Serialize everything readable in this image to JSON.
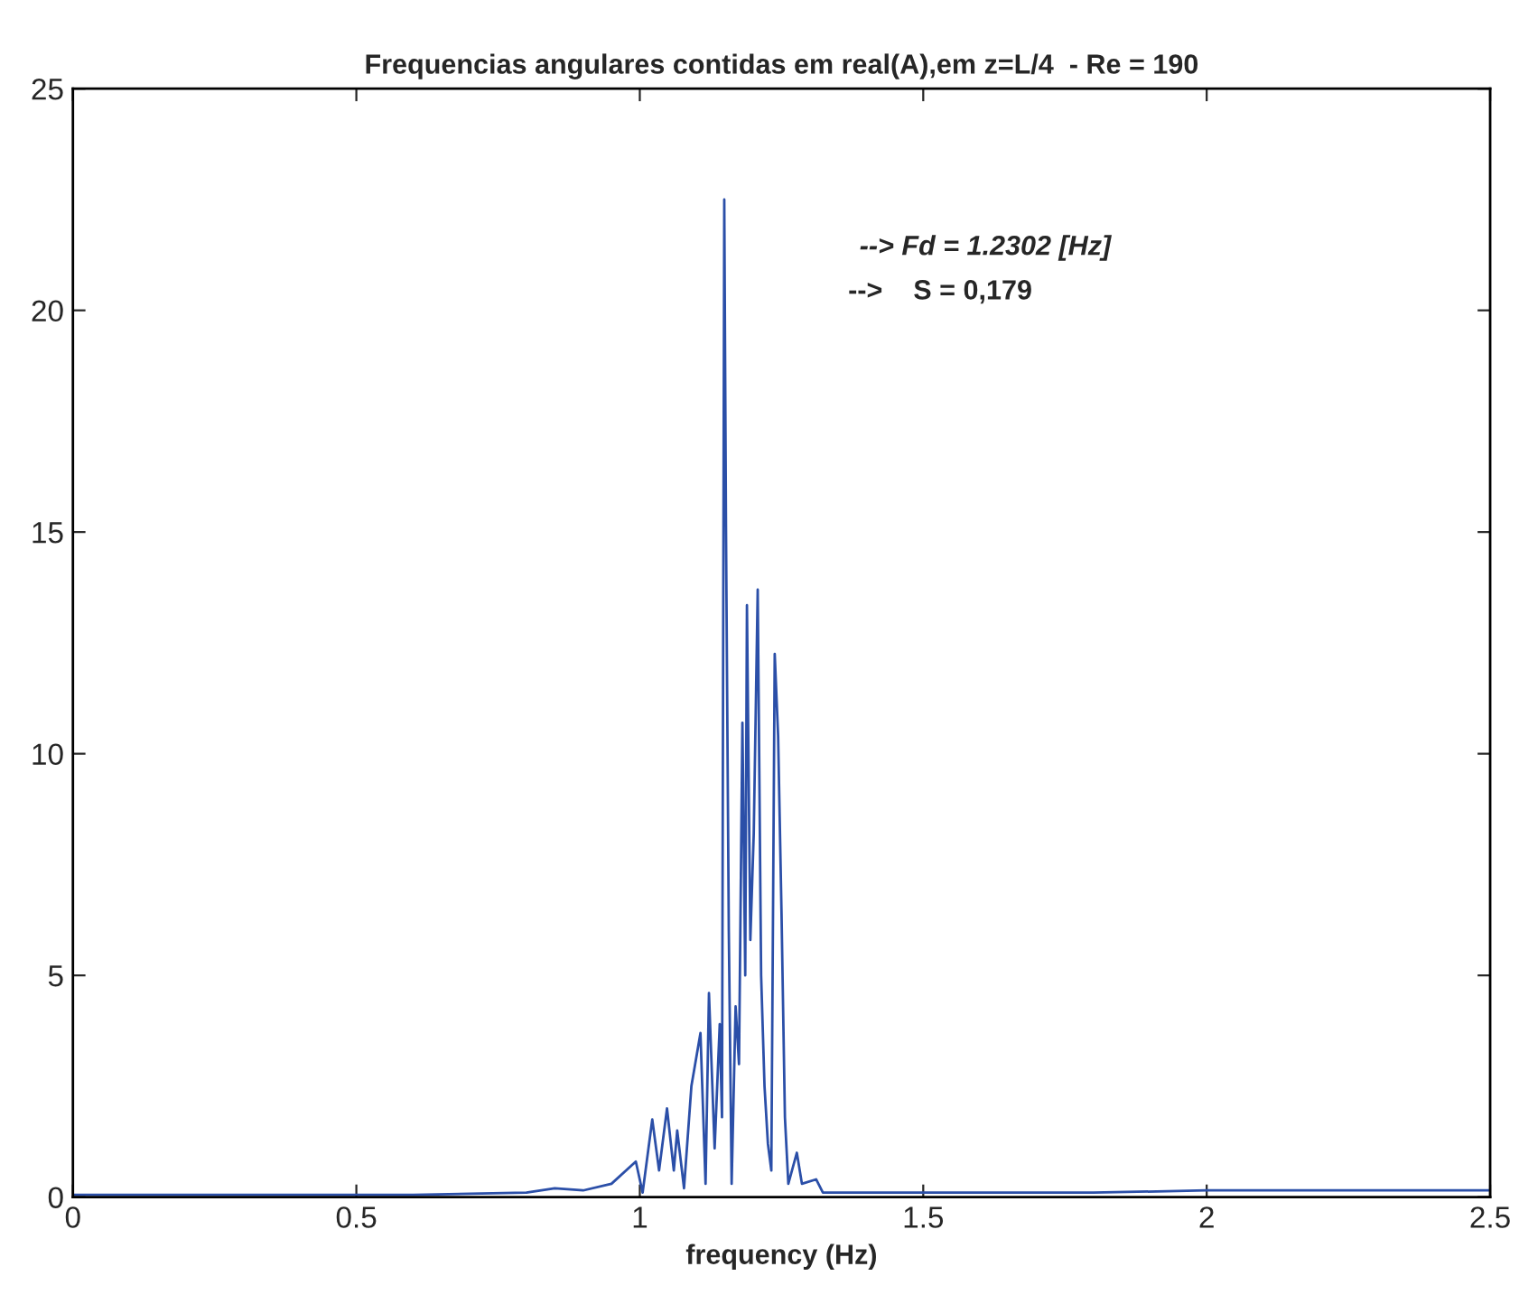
{
  "chart_data": {
    "type": "line",
    "title": "Frequencias angulares contidas em real(A),em z=L/4  - Re = 190",
    "xlabel": "frequency (Hz)",
    "annotations": [
      "--> Fd = 1.2302 [Hz]",
      "-->    S = 0,179"
    ],
    "series": [
      {
        "color": "#2b4fa8",
        "x": [
          0,
          0.2,
          0.4,
          0.6,
          0.8,
          0.85,
          0.9,
          0.95,
          0.993,
          1.005,
          1.022,
          1.034,
          1.048,
          1.06,
          1.066,
          1.078,
          1.091,
          1.107,
          1.116,
          1.122,
          1.132,
          1.141,
          1.145,
          1.149,
          1.152,
          1.157,
          1.162,
          1.169,
          1.175,
          1.181,
          1.186,
          1.189,
          1.195,
          1.201,
          1.208,
          1.214,
          1.22,
          1.226,
          1.232,
          1.238,
          1.244,
          1.25,
          1.256,
          1.262,
          1.277,
          1.286,
          1.311,
          1.323,
          1.4,
          1.6,
          1.8,
          2.0,
          2.2,
          2.5
        ],
        "values": [
          0.05,
          0.05,
          0.05,
          0.05,
          0.1,
          0.2,
          0.15,
          0.3,
          0.8,
          0.1,
          1.75,
          0.6,
          2.0,
          0.6,
          1.5,
          0.2,
          2.5,
          3.7,
          0.3,
          4.6,
          1.1,
          3.9,
          1.8,
          22.5,
          15.2,
          6.0,
          0.3,
          4.3,
          3.0,
          10.7,
          5.0,
          13.35,
          5.8,
          8.2,
          13.7,
          5.0,
          2.5,
          1.2,
          0.6,
          12.25,
          10.4,
          6.4,
          1.8,
          0.3,
          1.0,
          0.3,
          0.4,
          0.1,
          0.1,
          0.1,
          0.1,
          0.15,
          0.15,
          0.15
        ]
      }
    ],
    "xlim": [
      0,
      2.5
    ],
    "xticks": [
      0,
      0.5,
      1,
      1.5,
      2,
      2.5
    ],
    "ylim": [
      0,
      25
    ],
    "yticks": [
      0,
      5,
      10,
      15,
      20,
      25
    ],
    "grid": false,
    "marker": "none",
    "line_style": "solid"
  }
}
